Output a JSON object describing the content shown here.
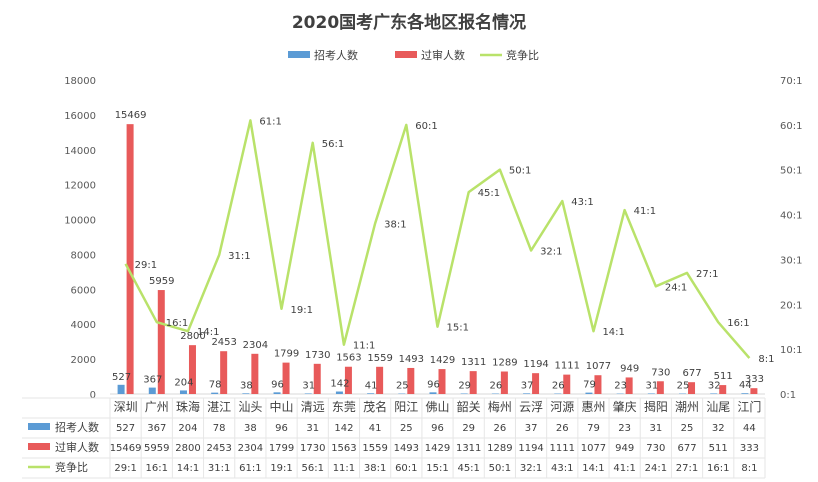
{
  "chart_data": {
    "type": "bar",
    "title": "2020国考广东各地区报名情况",
    "categories": [
      "深圳",
      "广州",
      "珠海",
      "湛江",
      "汕头",
      "中山",
      "清远",
      "东莞",
      "茂名",
      "阳江",
      "佛山",
      "韶关",
      "梅州",
      "云浮",
      "河源",
      "惠州",
      "肇庆",
      "揭阳",
      "潮州",
      "汕尾",
      "江门"
    ],
    "series": [
      {
        "name": "招考人数",
        "type": "bar",
        "axis": "left",
        "color": "#5b9bd5",
        "values": [
          527,
          367,
          204,
          78,
          38,
          96,
          31,
          142,
          41,
          25,
          96,
          29,
          26,
          37,
          26,
          79,
          23,
          31,
          25,
          32,
          44
        ],
        "labels": [
          "527",
          "367",
          "204",
          "78",
          "38",
          "96",
          "31",
          "142",
          "41",
          "25",
          "96",
          "29",
          "26",
          "37",
          "26",
          "79",
          "23",
          "31",
          "25",
          "32",
          "44"
        ]
      },
      {
        "name": "过审人数",
        "type": "bar",
        "axis": "left",
        "color": "#e85a5a",
        "values": [
          15469,
          5959,
          2800,
          2453,
          2304,
          1799,
          1730,
          1563,
          1559,
          1493,
          1429,
          1311,
          1289,
          1194,
          1111,
          1077,
          949,
          730,
          677,
          511,
          333
        ],
        "labels": [
          "15469",
          "5959",
          "2800",
          "2453",
          "2304",
          "1799",
          "1730",
          "1563",
          "1559",
          "1493",
          "1429",
          "1311",
          "1289",
          "1194",
          "1111",
          "1077",
          "949",
          "730",
          "677",
          "511",
          "333"
        ]
      },
      {
        "name": "竞争比",
        "type": "line",
        "axis": "right",
        "color": "#b9e26a",
        "values": [
          29,
          16,
          14,
          31,
          61,
          19,
          56,
          11,
          38,
          60,
          15,
          45,
          50,
          32,
          43,
          14,
          41,
          24,
          27,
          16,
          8
        ],
        "labels": [
          "29:1",
          "16:1",
          "14:1",
          "31:1",
          "61:1",
          "19:1",
          "56:1",
          "11:1",
          "38:1",
          "60:1",
          "15:1",
          "45:1",
          "50:1",
          "32:1",
          "43:1",
          "14:1",
          "41:1",
          "24:1",
          "27:1",
          "16:1",
          "8:1"
        ]
      }
    ],
    "y_left": {
      "min": 0,
      "max": 18000,
      "ticks": [
        "0",
        "2000",
        "4000",
        "6000",
        "8000",
        "10000",
        "12000",
        "14000",
        "16000",
        "18000"
      ]
    },
    "y_right": {
      "min": 0,
      "max": 70,
      "ticks": [
        "0:1",
        "10:1",
        "20:1",
        "30:1",
        "40:1",
        "50:1",
        "60:1",
        "70:1"
      ]
    },
    "legend_position": "top",
    "grid": false,
    "data_table": true
  }
}
